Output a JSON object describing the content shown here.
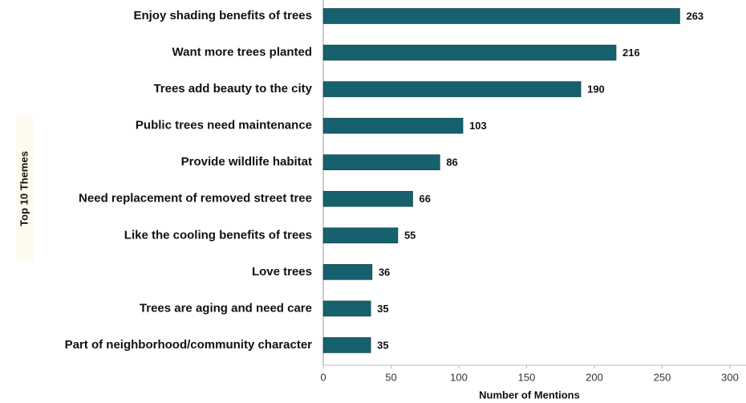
{
  "chart_data": {
    "type": "bar",
    "orientation": "horizontal",
    "categories": [
      "Enjoy shading benefits of trees",
      "Want more trees planted",
      "Trees add beauty to the city",
      "Public trees need maintenance",
      "Provide wildlife habitat",
      "Need replacement of removed street tree",
      "Like the cooling benefits of trees",
      "Love trees",
      "Trees are aging and need care",
      "Part of neighborhood/community character"
    ],
    "values": [
      263,
      216,
      190,
      103,
      86,
      66,
      55,
      36,
      35,
      35
    ],
    "color": "#17606e",
    "xlim": [
      0,
      300
    ],
    "xticks": [
      0,
      50,
      100,
      150,
      200,
      250,
      300
    ],
    "xlabel": "Number of Mentions",
    "ylabel": "Top 10 Themes"
  }
}
